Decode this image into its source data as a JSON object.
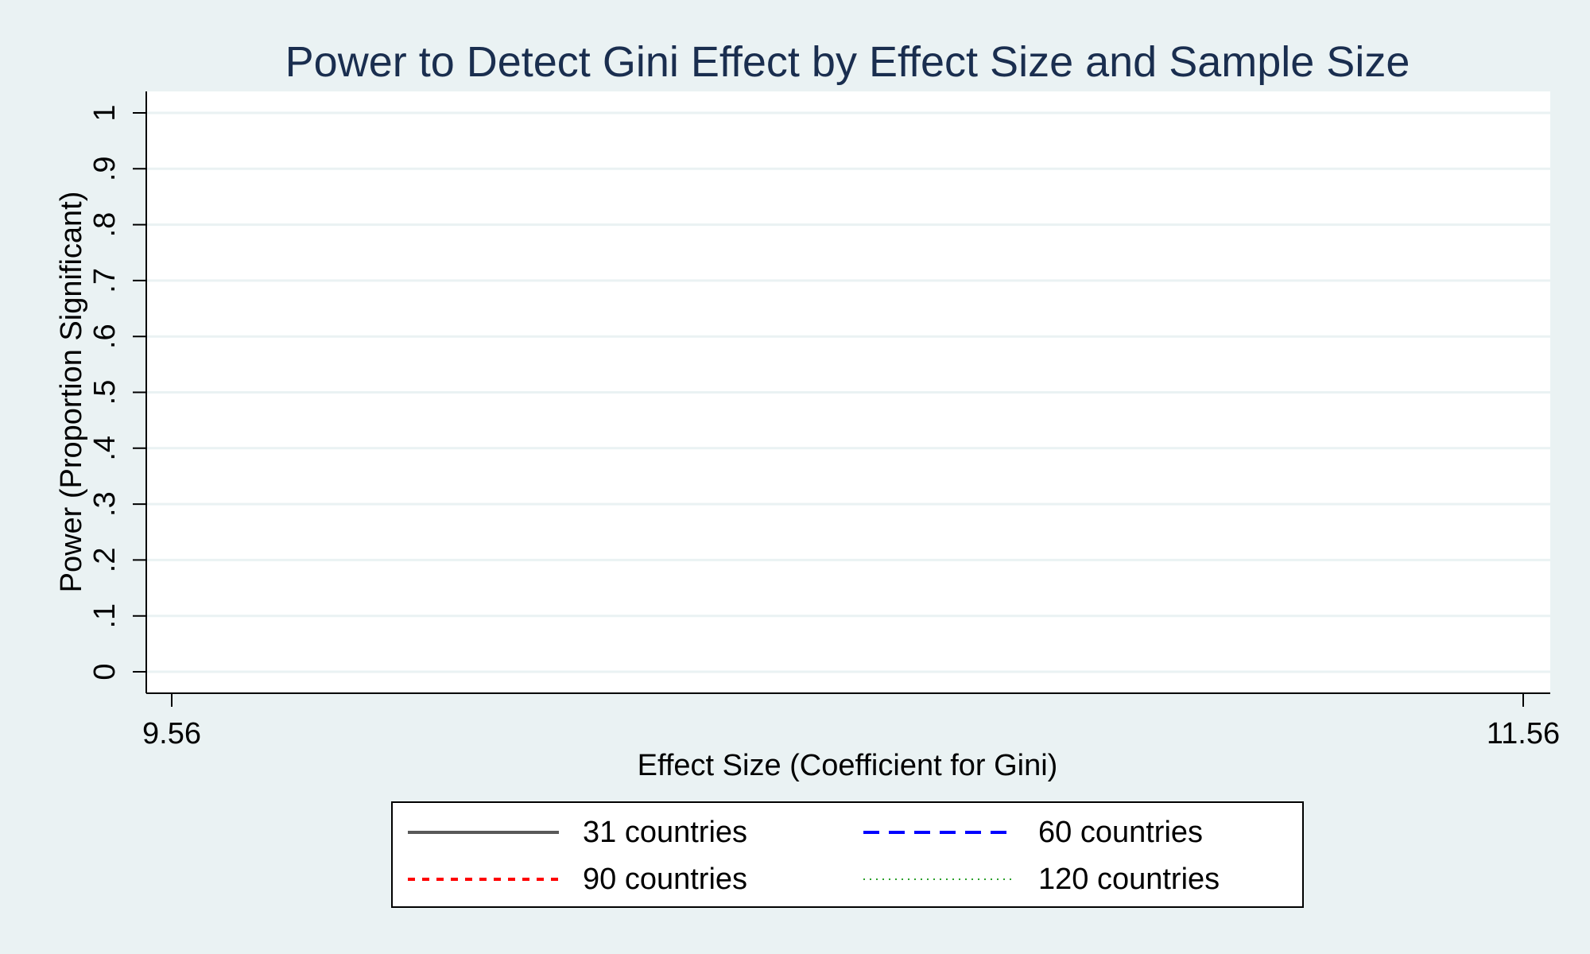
{
  "chart_data": {
    "type": "line",
    "title": "Power to Detect Gini Effect by Effect Size and Sample Size",
    "xlabel": "Effect Size (Coefficient for Gini)",
    "ylabel": "Power (Proportion Significant)",
    "xlim": [
      9.56,
      11.56
    ],
    "ylim": [
      0,
      1
    ],
    "x_ticks": [
      9.56,
      11.56
    ],
    "x_tick_labels": [
      "9.56",
      "11.56"
    ],
    "y_ticks": [
      0,
      0.1,
      0.2,
      0.3,
      0.4,
      0.5,
      0.6,
      0.7,
      0.8,
      0.9,
      1
    ],
    "y_tick_labels": [
      "0",
      ".1",
      ".2",
      ".3",
      ".4",
      ".5",
      ".6",
      ".7",
      ".8",
      ".9",
      "1"
    ],
    "grid": true,
    "legend_position": "bottom",
    "series": [
      {
        "name": "31 countries",
        "color": "#595959",
        "style": "solid",
        "x": [],
        "y": []
      },
      {
        "name": "60 countries",
        "color": "#0000ff",
        "style": "dashed",
        "x": [],
        "y": []
      },
      {
        "name": "90 countries",
        "color": "#ff0000",
        "style": "short-dashed",
        "x": [],
        "y": []
      },
      {
        "name": "120 countries",
        "color": "#2ca02c",
        "style": "dotted",
        "x": [],
        "y": []
      }
    ]
  }
}
